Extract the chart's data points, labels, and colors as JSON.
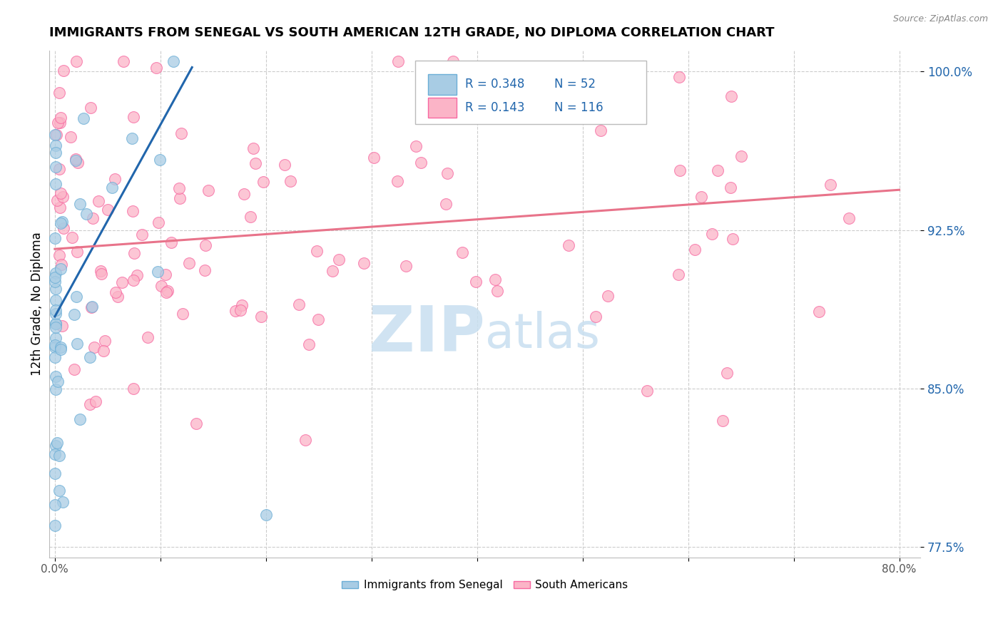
{
  "title": "IMMIGRANTS FROM SENEGAL VS SOUTH AMERICAN 12TH GRADE, NO DIPLOMA CORRELATION CHART",
  "source": "Source: ZipAtlas.com",
  "ylabel": "12th Grade, No Diploma",
  "senegal_color": "#a8cce4",
  "senegal_edge": "#6baed6",
  "south_color": "#fbb4c7",
  "south_edge": "#f768a1",
  "senegal_line_color": "#2166ac",
  "south_line_color": "#e8738a",
  "senegal_R": 0.348,
  "senegal_N": 52,
  "south_R": 0.143,
  "south_N": 116,
  "legend_color": "#2166ac",
  "watermark_color": "#c8dff0",
  "background_color": "#ffffff",
  "grid_color": "#cccccc",
  "xlim": [
    -0.005,
    0.82
  ],
  "ylim": [
    0.77,
    1.01
  ]
}
